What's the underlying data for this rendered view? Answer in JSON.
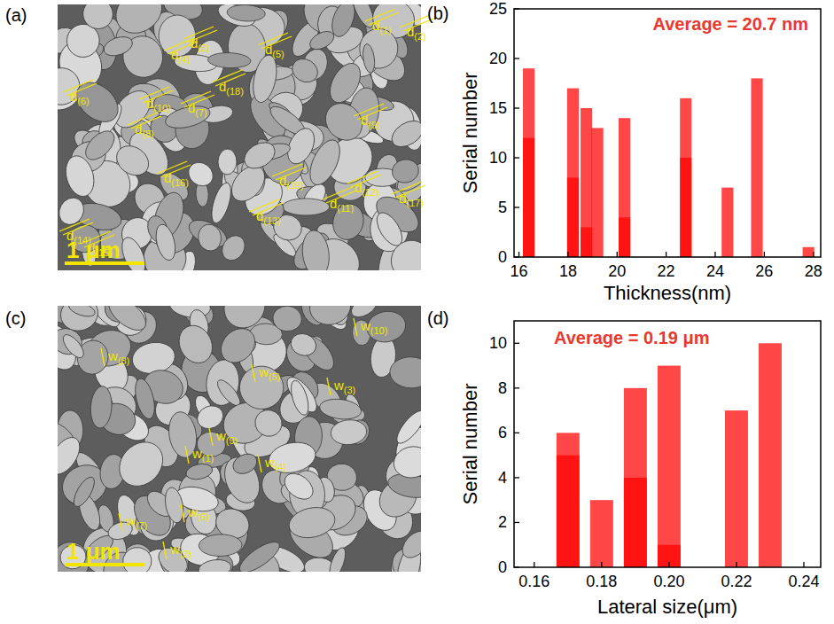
{
  "images": [
    {
      "panel_label": "(a)",
      "labels": [
        "d(1)",
        "d(2)",
        "d(3)",
        "d(4)",
        "d(5)",
        "d(6)",
        "d(7)",
        "d(8)",
        "d(9)",
        "d(10)",
        "d(11)",
        "d(12)",
        "d(13)",
        "d(14)",
        "d(15)",
        "d(16)",
        "d(17)",
        "d(18)",
        "d(19)"
      ],
      "scale_bar": "1 μm"
    },
    {
      "panel_label": "(c)",
      "labels": [
        "w(1)",
        "w(2)",
        "w(3)",
        "w(4)",
        "w(5)",
        "w(6)",
        "w(7)",
        "w(8)",
        "w(9)",
        "w(10)"
      ],
      "scale_bar": "1 μm"
    }
  ],
  "chart_data": [
    {
      "type": "bar",
      "panel_label": "(b)",
      "annotation": "Average = 20.7 nm",
      "x_label": "Thickness(nm)",
      "y_label": "Serial number",
      "x": [
        16.4,
        18.2,
        18.75,
        19.2,
        20.3,
        22.8,
        24.5,
        25.7,
        27.8
      ],
      "series": [
        {
          "color": "#ff0000",
          "values": [
            19,
            17,
            15,
            13,
            14,
            16,
            7,
            18,
            1
          ]
        },
        {
          "color": "#ff0000",
          "values": [
            12,
            8,
            3,
            null,
            4,
            10,
            null,
            null,
            null
          ]
        }
      ],
      "xlim": [
        15.8,
        28.3
      ],
      "xticks": [
        16,
        18,
        20,
        22,
        24,
        26,
        28
      ],
      "ylim": [
        0,
        25
      ],
      "yticks": [
        0,
        5,
        10,
        15,
        20,
        25
      ]
    },
    {
      "type": "bar",
      "panel_label": "(d)",
      "annotation": "Average = 0.19 μm",
      "x_label": "Lateral size(μm)",
      "y_label": "Serial number",
      "x": [
        0.17,
        0.18,
        0.19,
        0.2,
        0.22,
        0.23
      ],
      "series": [
        {
          "color": "#ff0000",
          "values": [
            6,
            3,
            8,
            9,
            7,
            10
          ]
        },
        {
          "color": "#ff0000",
          "values": [
            5,
            null,
            4,
            1,
            null,
            null
          ]
        }
      ],
      "xlim": [
        0.154,
        0.245
      ],
      "xticks": [
        {
          "value": 0.16,
          "label": "0.16"
        },
        {
          "value": 0.18,
          "label": "0.18"
        },
        {
          "value": 0.2,
          "label": "0.20"
        },
        {
          "value": 0.22,
          "label": "0.22"
        },
        {
          "value": 0.24,
          "label": "0.24"
        }
      ],
      "ylim": [
        0,
        11
      ],
      "yticks": [
        0,
        2,
        4,
        6,
        8,
        10
      ]
    }
  ]
}
